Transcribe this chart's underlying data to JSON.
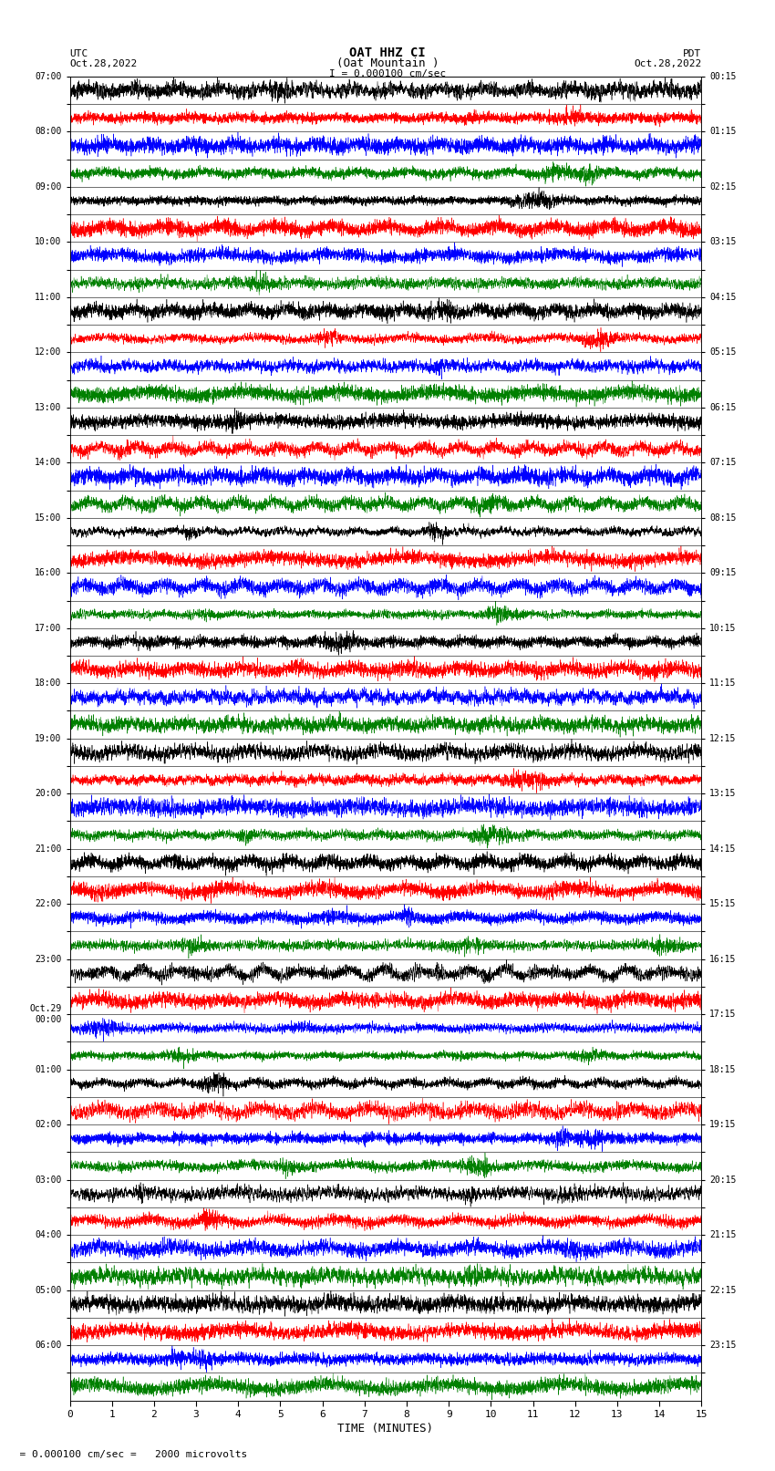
{
  "title_line1": "OAT HHZ CI",
  "title_line2": "(Oat Mountain )",
  "title_scale": "I = 0.000100 cm/sec",
  "left_label_top": "UTC",
  "left_label_date": "Oct.28,2022",
  "right_label_top": "PDT",
  "right_label_date": "Oct.28,2022",
  "bottom_label": "TIME (MINUTES)",
  "bottom_note": "  = 0.000100 cm/sec =   2000 microvolts",
  "xlabel_ticks": [
    0,
    1,
    2,
    3,
    4,
    5,
    6,
    7,
    8,
    9,
    10,
    11,
    12,
    13,
    14,
    15
  ],
  "utc_times": [
    "07:00",
    "",
    "08:00",
    "",
    "09:00",
    "",
    "10:00",
    "",
    "11:00",
    "",
    "12:00",
    "",
    "13:00",
    "",
    "14:00",
    "",
    "15:00",
    "",
    "16:00",
    "",
    "17:00",
    "",
    "18:00",
    "",
    "19:00",
    "",
    "20:00",
    "",
    "21:00",
    "",
    "22:00",
    "",
    "23:00",
    "",
    "Oct.29\n00:00",
    "",
    "01:00",
    "",
    "02:00",
    "",
    "03:00",
    "",
    "04:00",
    "",
    "05:00",
    "",
    "06:00",
    ""
  ],
  "pdt_times": [
    "00:15",
    "",
    "01:15",
    "",
    "02:15",
    "",
    "03:15",
    "",
    "04:15",
    "",
    "05:15",
    "",
    "06:15",
    "",
    "07:15",
    "",
    "08:15",
    "",
    "09:15",
    "",
    "10:15",
    "",
    "11:15",
    "",
    "12:15",
    "",
    "13:15",
    "",
    "14:15",
    "",
    "15:15",
    "",
    "16:15",
    "",
    "17:15",
    "",
    "18:15",
    "",
    "19:15",
    "",
    "20:15",
    "",
    "21:15",
    "",
    "22:15",
    "",
    "23:15",
    ""
  ],
  "trace_colors": [
    "black",
    "red",
    "blue",
    "green"
  ],
  "n_rows": 48,
  "n_points": 4500,
  "figsize": [
    8.5,
    16.13
  ],
  "dpi": 100,
  "bg_color": "white",
  "trace_amplitude": 0.48,
  "seed": 12345
}
